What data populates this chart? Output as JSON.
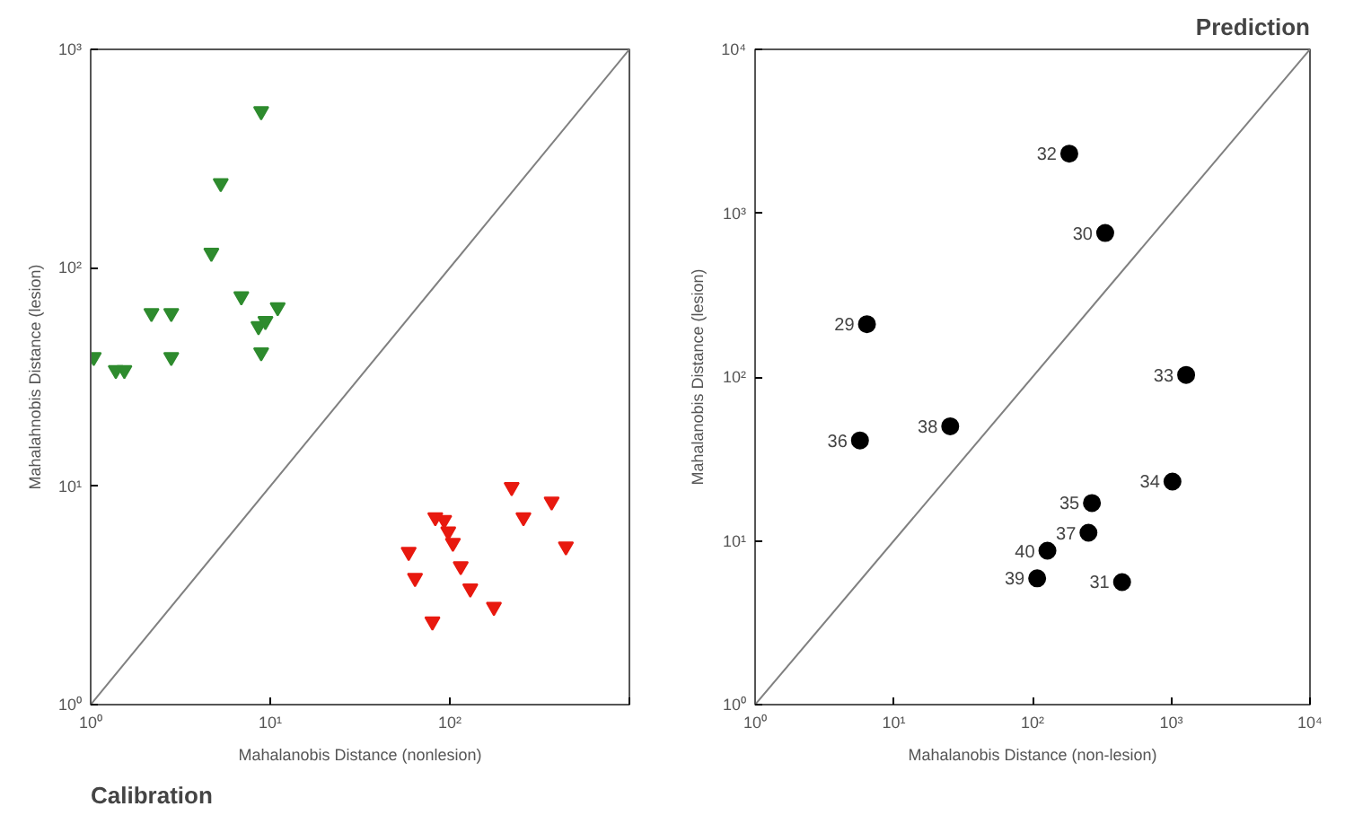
{
  "chart_data": [
    {
      "type": "scatter",
      "title": "Calibration",
      "xlabel": "Mahalanobis Distance (nonlesion)",
      "ylabel": "Mahalahnobis Distance (lesion)",
      "log": "xy",
      "grid": false,
      "marker": "triangle",
      "xlim": [
        1,
        1000
      ],
      "ylim": [
        1,
        1000
      ],
      "xticks": [
        {
          "value": 1,
          "label": "10⁰"
        },
        {
          "value": 10,
          "label": "10¹"
        },
        {
          "value": 100,
          "label": "10²"
        },
        {
          "value": 1000,
          "label": null
        }
      ],
      "yticks": [
        {
          "value": 1,
          "label": "10⁰"
        },
        {
          "value": 10,
          "label": "10¹"
        },
        {
          "value": 100,
          "label": "10²"
        },
        {
          "value": 1000,
          "label": "10³"
        }
      ],
      "series": [
        {
          "color": "#2e8b2e",
          "x": [
            1.04,
            1.38,
            1.54,
            2.18,
            2.81,
            2.81,
            4.7,
            5.3,
            6.9,
            8.9,
            8.6,
            9.4,
            8.9,
            11
          ],
          "values": [
            39,
            34,
            34,
            62,
            62,
            39,
            117,
            244,
            74,
            521,
            54,
            57,
            41,
            66
          ]
        },
        {
          "color": "#e8190f",
          "x": [
            59,
            64,
            80,
            83,
            93,
            98,
            104,
            115,
            130,
            176,
            221,
            257,
            369,
            443
          ],
          "values": [
            5.0,
            3.8,
            2.4,
            7.2,
            7.0,
            6.2,
            5.5,
            4.3,
            3.4,
            2.8,
            9.9,
            7.2,
            8.5,
            5.3
          ]
        },
        {
          "type": "line",
          "color": "#808080",
          "marker": "none",
          "x": [
            1,
            1000
          ],
          "values": [
            1,
            1000
          ]
        }
      ]
    },
    {
      "type": "scatter",
      "title": "Prediction",
      "xlabel": "Mahalanobis Distance (non-lesion)",
      "ylabel": "Mahalanobis Distance (lesion)",
      "log": "xy",
      "grid": false,
      "marker": "circle",
      "xlim": [
        1,
        10000
      ],
      "ylim": [
        1,
        10000
      ],
      "xticks": [
        {
          "value": 1,
          "label": "10⁰"
        },
        {
          "value": 10,
          "label": "10¹"
        },
        {
          "value": 100,
          "label": "10²"
        },
        {
          "value": 1000,
          "label": "10³"
        },
        {
          "value": 10000,
          "label": "10⁴"
        }
      ],
      "yticks": [
        {
          "value": 1,
          "label": "10⁰"
        },
        {
          "value": 10,
          "label": "10¹"
        },
        {
          "value": 100,
          "label": "10²"
        },
        {
          "value": 1000,
          "label": "10³"
        },
        {
          "value": 10000,
          "label": "10⁴"
        }
      ],
      "series": [
        {
          "color": "#000000",
          "x": [
            184,
            334,
            6.4,
            1280,
            5.7,
            25.5,
            1020,
            268,
            253,
            128,
            108,
            442
          ],
          "values": [
            2310,
            757,
            210,
            103,
            41,
            50,
            23,
            17,
            11.2,
            8.7,
            5.9,
            5.6
          ]
        },
        {
          "type": "line",
          "color": "#808080",
          "marker": "none",
          "x": [
            1,
            10000
          ],
          "values": [
            1,
            10000
          ]
        }
      ],
      "annotations": [
        {
          "text": "32",
          "x": 184,
          "y": 2310
        },
        {
          "text": "30",
          "x": 334,
          "y": 757
        },
        {
          "text": "29",
          "x": 6.4,
          "y": 210
        },
        {
          "text": "33",
          "x": 1280,
          "y": 103
        },
        {
          "text": "36",
          "x": 5.7,
          "y": 41
        },
        {
          "text": "38",
          "x": 25.5,
          "y": 50
        },
        {
          "text": "34",
          "x": 1020,
          "y": 23
        },
        {
          "text": "35",
          "x": 268,
          "y": 17
        },
        {
          "text": "37",
          "x": 253,
          "y": 11.2
        },
        {
          "text": "40",
          "x": 128,
          "y": 8.7
        },
        {
          "text": "39",
          "x": 108,
          "y": 5.9
        },
        {
          "text": "31",
          "x": 442,
          "y": 5.6
        }
      ]
    }
  ]
}
